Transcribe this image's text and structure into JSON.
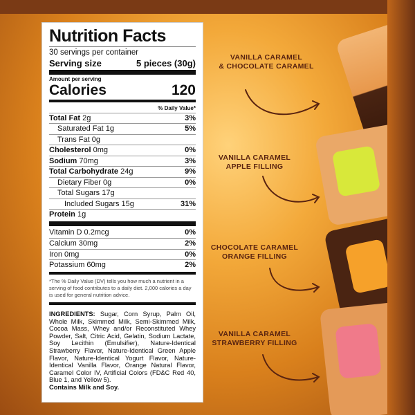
{
  "label": {
    "title": "Nutrition Facts",
    "servings": "30 servings per container",
    "serving_size_label": "Serving size",
    "serving_size_value": "5 pieces (30g)",
    "amount_per_serving": "Amount per serving",
    "calories_label": "Calories",
    "calories_value": "120",
    "dv_header": "% Daily Value*",
    "nutrients": [
      {
        "name": "Total Fat",
        "amount": "2g",
        "dv": "3%"
      },
      {
        "name": "Saturated Fat",
        "amount": "1g",
        "dv": "5%"
      },
      {
        "name": "Trans Fat",
        "amount": "0g",
        "dv": ""
      },
      {
        "name": "Cholesterol",
        "amount": "0mg",
        "dv": "0%"
      },
      {
        "name": "Sodium",
        "amount": "70mg",
        "dv": "3%"
      },
      {
        "name": "Total Carbohydrate",
        "amount": "24g",
        "dv": "9%"
      },
      {
        "name": "Dietary Fiber",
        "amount": "0g",
        "dv": "0%"
      },
      {
        "name": "Total Sugars",
        "amount": "17g",
        "dv": ""
      },
      {
        "name": "Includes",
        "amount": "Included Sugars 15g",
        "dv": "31%"
      },
      {
        "name": "Protein",
        "amount": "1g",
        "dv": ""
      }
    ],
    "vitamins": [
      {
        "name": "Vitamin D 0.2mcg",
        "dv": "0%"
      },
      {
        "name": "Calcium 30mg",
        "dv": "2%"
      },
      {
        "name": "Iron 0mg",
        "dv": "0%"
      },
      {
        "name": "Potassium 60mg",
        "dv": "2%"
      }
    ],
    "footnote": "*The % Daily Value (DV) tells you how much a nutrient in a serving of food contributes to a daily diet. 2,000 calories a day is used for general nutrition advice.",
    "ingredients_label": "INGREDIENTS:",
    "ingredients": "Sugar, Corn Syrup, Palm Oil, Whole Milk, Skimmed Milk, Semi-Skimmed Milk, Cocoa Mass, Whey and/or Reconstituted Whey Powder, Salt, Citric Acid, Gelatin, Sodium Lactate, Soy Lecithin (Emulsifier), Nature-Identical Strawberry Flavor, Nature-Identical Green Apple Flavor, Nature-Identical Yogurt Flavor, Nature-Identical Vanilla Flavor, Orange Natural Flavor, Caramel Color IV, Artificial Colors (FD&C Red 40, Blue 1, and Yellow 5).",
    "allergens": "Contains Milk and Soy."
  },
  "callouts": [
    {
      "line1": "VANILLA CARAMEL",
      "line2": "& CHOCOLATE CARAMEL"
    },
    {
      "line1": "VANILLA CARAMEL",
      "line2": "APPLE FILLING"
    },
    {
      "line1": "CHOCOLATE CARAMEL",
      "line2": "ORANGE FILLING"
    },
    {
      "line1": "VANILLA CARAMEL",
      "line2": "STRAWBERRY FILLING"
    }
  ],
  "colors": {
    "callout_text": "#5a2410",
    "caramel": "#e8a05a",
    "chocolate": "#4a2412",
    "apple": "#d8e83a",
    "orange": "#f6a12a",
    "strawberry": "#f07a8a"
  }
}
